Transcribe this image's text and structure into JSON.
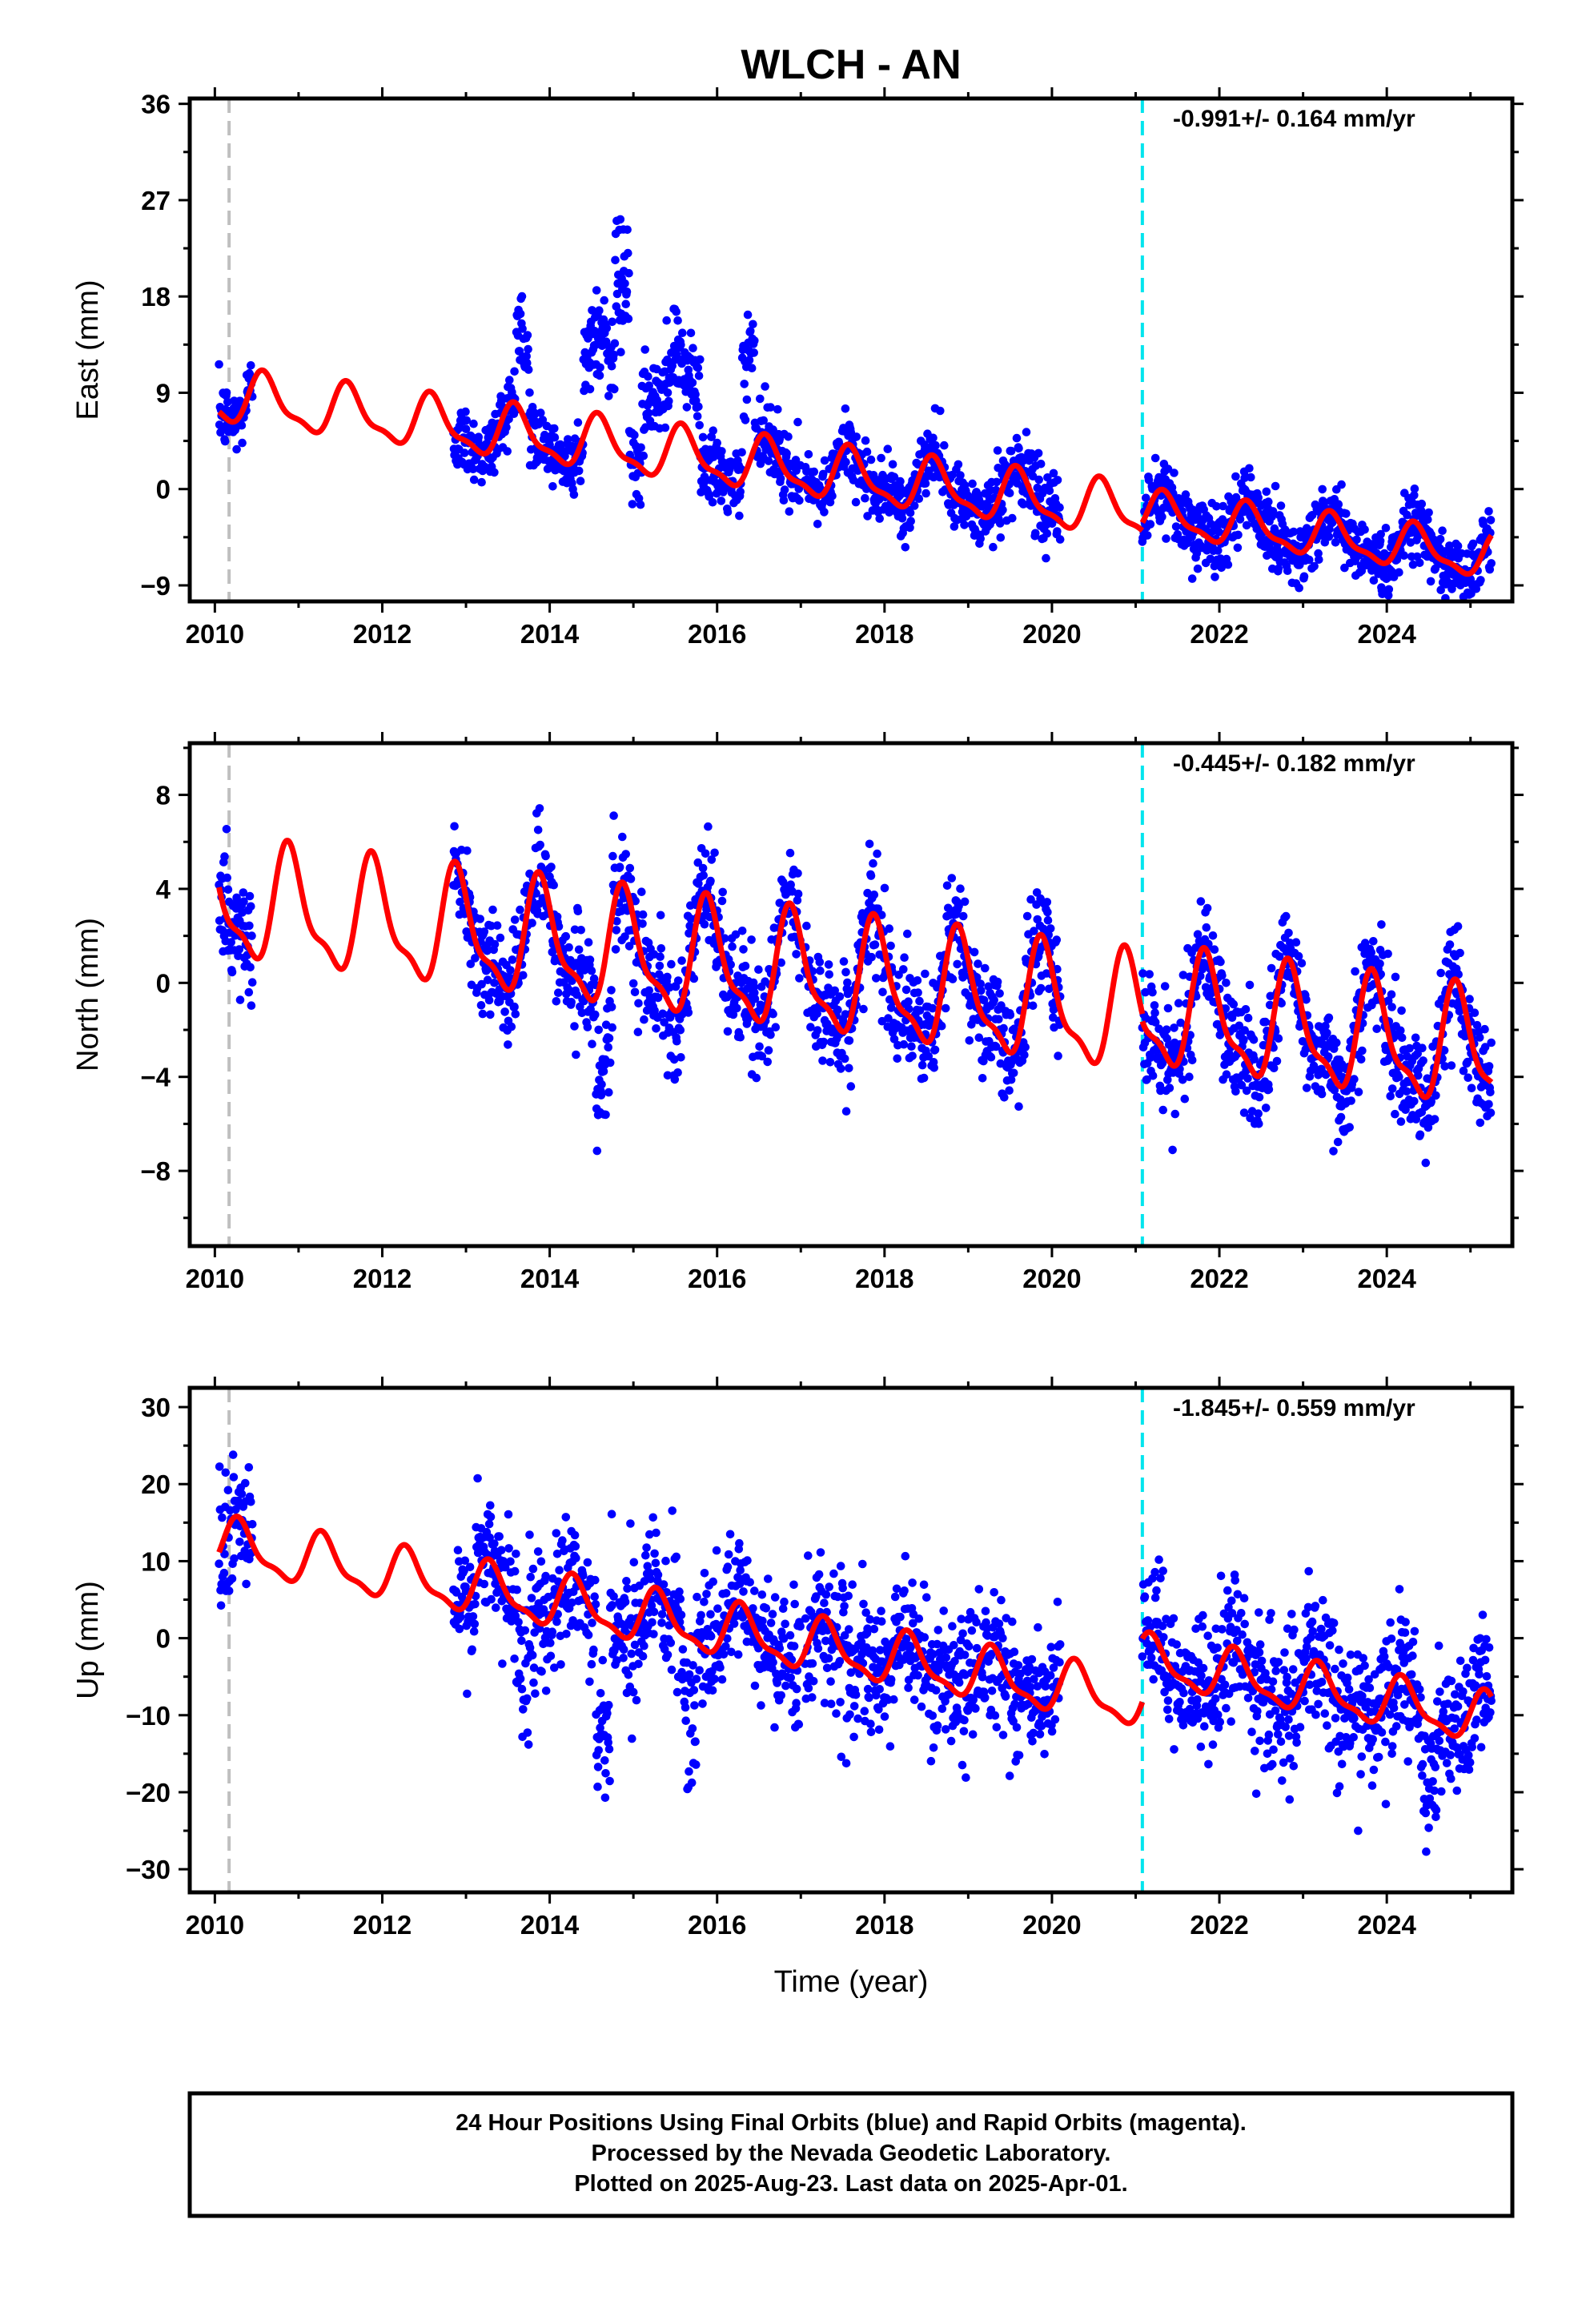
{
  "title": "WLCH - AN",
  "xlabel": "Time (year)",
  "footer": {
    "lines": [
      "24 Hour Positions Using Final Orbits (blue) and Rapid Orbits (magenta).",
      "Processed by the Nevada Geodetic Laboratory.",
      "Plotted on 2025-Aug-23. Last data on 2025-Apr-01."
    ]
  },
  "colors": {
    "points": "#0000ff",
    "model": "#ff0000",
    "equipment_change_line": "#bfbfbf",
    "offset_line": "#00e5ee",
    "frame": "#000000"
  },
  "chart_data": [
    {
      "type": "scatter",
      "component": "east",
      "ylabel": "East (mm)",
      "rate_label": "-0.991+/- 0.164 mm/yr",
      "xlim": [
        2009.7,
        2025.5
      ],
      "ylim": [
        -10.5,
        36.5
      ],
      "xticks": [
        2010,
        2012,
        2014,
        2016,
        2018,
        2020,
        2022,
        2024
      ],
      "yticks": [
        -9,
        0,
        9,
        18,
        27,
        36
      ],
      "vlines": [
        {
          "x": 2010.17,
          "kind": "equipment"
        },
        {
          "x": 2021.08,
          "kind": "offset"
        }
      ],
      "trend": {
        "rate": -0.991,
        "segments": [
          {
            "start": 2010.05,
            "end": 2021.08,
            "intercept_at_start": 8.6,
            "amplitude": 2.3,
            "phase_peak": 0.6
          },
          {
            "start": 2021.08,
            "end": 2025.25,
            "intercept_at_start": -2.3,
            "amplitude": 1.9,
            "phase_peak": 0.35
          }
        ]
      },
      "data_spans": [
        [
          2010.05,
          2010.45
        ],
        [
          2012.85,
          2017.0
        ],
        [
          2017.05,
          2020.1
        ],
        [
          2021.08,
          2025.25
        ]
      ],
      "noise_sigma": 1.6,
      "anomalies": [
        {
          "start": 2013.6,
          "end": 2013.75,
          "offset": 9.0
        },
        {
          "start": 2014.4,
          "end": 2014.78,
          "offset": 9.0
        },
        {
          "start": 2014.78,
          "end": 2014.95,
          "offset": 20.0
        },
        {
          "start": 2015.1,
          "end": 2015.8,
          "offset": 8.0
        },
        {
          "start": 2016.3,
          "end": 2016.45,
          "offset": 13.0
        }
      ]
    },
    {
      "type": "scatter",
      "component": "north",
      "ylabel": "North (mm)",
      "rate_label": "-0.445+/- 0.182 mm/yr",
      "xlim": [
        2009.7,
        2025.5
      ],
      "ylim": [
        -11.2,
        10.2
      ],
      "xticks": [
        2010,
        2012,
        2014,
        2016,
        2018,
        2020,
        2022,
        2024
      ],
      "yticks": [
        -8,
        -4,
        0,
        4,
        8
      ],
      "vlines": [
        {
          "x": 2010.17,
          "kind": "equipment"
        },
        {
          "x": 2021.08,
          "kind": "offset"
        }
      ],
      "trend": {
        "rate": -0.445,
        "segments": [
          {
            "start": 2010.05,
            "end": 2021.08,
            "intercept_at_start": 3.4,
            "amplitude": 2.3,
            "phase_peak": 0.9
          },
          {
            "start": 2021.08,
            "end": 2025.25,
            "intercept_at_start": -1.2,
            "amplitude": 2.3,
            "phase_peak": 0.85
          }
        ]
      },
      "data_spans": [
        [
          2010.05,
          2010.45
        ],
        [
          2012.85,
          2017.0
        ],
        [
          2017.05,
          2020.1
        ],
        [
          2021.08,
          2025.25
        ]
      ],
      "noise_sigma": 1.2,
      "anomalies": [
        {
          "start": 2014.55,
          "end": 2014.75,
          "offset": -6.0
        }
      ]
    },
    {
      "type": "scatter",
      "component": "up",
      "ylabel": "Up (mm)",
      "rate_label": "-1.845+/- 0.559 mm/yr",
      "xlim": [
        2009.7,
        2025.5
      ],
      "ylim": [
        -33,
        32.5
      ],
      "xticks": [
        2010,
        2012,
        2014,
        2016,
        2018,
        2020,
        2022,
        2024
      ],
      "yticks": [
        -30,
        -20,
        -10,
        0,
        10,
        20,
        30
      ],
      "vlines": [
        {
          "x": 2010.17,
          "kind": "equipment"
        },
        {
          "x": 2021.08,
          "kind": "offset"
        }
      ],
      "trend": {
        "rate": -1.845,
        "segments": [
          {
            "start": 2010.05,
            "end": 2021.08,
            "intercept_at_start": 12.0,
            "amplitude": 3.2,
            "phase_peak": 0.3
          },
          {
            "start": 2021.08,
            "end": 2025.25,
            "intercept_at_start": -3.0,
            "amplitude": 3.0,
            "phase_peak": 0.2
          }
        ]
      },
      "data_spans": [
        [
          2010.05,
          2010.45
        ],
        [
          2012.85,
          2017.0
        ],
        [
          2017.05,
          2020.1
        ],
        [
          2021.08,
          2025.25
        ]
      ],
      "noise_sigma": 4.5,
      "anomalies": [
        {
          "start": 2013.6,
          "end": 2013.75,
          "offset": -10.0
        },
        {
          "start": 2014.55,
          "end": 2014.72,
          "offset": -18.0
        },
        {
          "start": 2015.6,
          "end": 2015.75,
          "offset": -12.0
        },
        {
          "start": 2024.4,
          "end": 2024.6,
          "offset": -10.0
        }
      ]
    }
  ]
}
